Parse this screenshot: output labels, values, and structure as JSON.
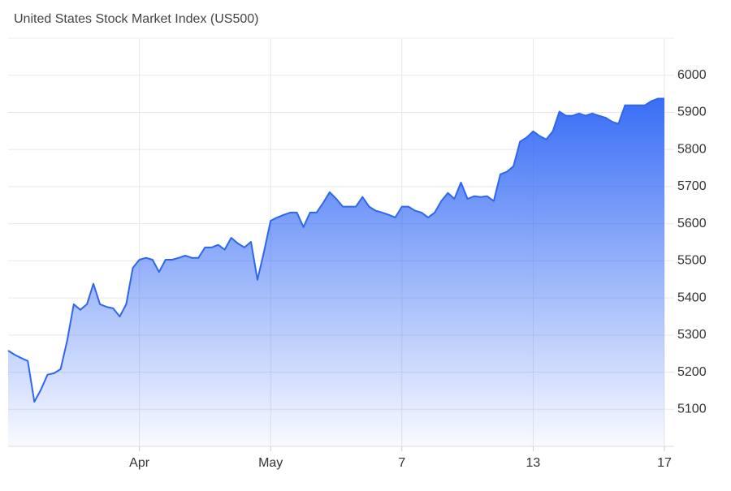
{
  "chart_data": {
    "type": "area",
    "title": "United States Stock Market Index (US500)",
    "categories": [
      null,
      null,
      null,
      null,
      null,
      null,
      null,
      null,
      null,
      null,
      null,
      null,
      null,
      null,
      null,
      null,
      null,
      null,
      null,
      null,
      "Apr",
      null,
      null,
      null,
      null,
      null,
      null,
      null,
      null,
      null,
      null,
      null,
      null,
      null,
      null,
      null,
      null,
      null,
      null,
      null,
      "May",
      null,
      null,
      null,
      null,
      null,
      null,
      null,
      null,
      null,
      null,
      null,
      null,
      null,
      null,
      null,
      null,
      null,
      null,
      null,
      "7",
      null,
      null,
      null,
      null,
      null,
      null,
      null,
      null,
      null,
      null,
      null,
      null,
      null,
      null,
      null,
      null,
      null,
      null,
      null,
      "13",
      null,
      null,
      null,
      null,
      null,
      null,
      null,
      null,
      null,
      null,
      null,
      null,
      null,
      null,
      null,
      null,
      null,
      null,
      null,
      "17"
    ],
    "values": [
      5258,
      5247,
      5238,
      5230,
      5120,
      5153,
      5193,
      5197,
      5208,
      5285,
      5383,
      5368,
      5383,
      5438,
      5383,
      5376,
      5372,
      5350,
      5383,
      5481,
      5503,
      5508,
      5503,
      5470,
      5503,
      5503,
      5508,
      5514,
      5508,
      5508,
      5536,
      5536,
      5543,
      5530,
      5562,
      5547,
      5536,
      5551,
      5449,
      5525,
      5608,
      5617,
      5624,
      5630,
      5630,
      5591,
      5630,
      5630,
      5656,
      5685,
      5667,
      5646,
      5646,
      5646,
      5672,
      5646,
      5635,
      5630,
      5624,
      5617,
      5646,
      5646,
      5635,
      5630,
      5617,
      5630,
      5661,
      5683,
      5667,
      5711,
      5667,
      5674,
      5672,
      5674,
      5661,
      5733,
      5740,
      5755,
      5821,
      5832,
      5849,
      5836,
      5827,
      5849,
      5902,
      5891,
      5891,
      5897,
      5891,
      5897,
      5891,
      5886,
      5875,
      5869,
      5919,
      5919,
      5919,
      5919,
      5930,
      5937,
      5937
    ],
    "color": "#2f66ee",
    "ylim": [
      5000,
      6100
    ],
    "yticks": [
      5100,
      5200,
      5300,
      5400,
      5500,
      5600,
      5700,
      5800,
      5900,
      6000
    ],
    "grid": true
  }
}
